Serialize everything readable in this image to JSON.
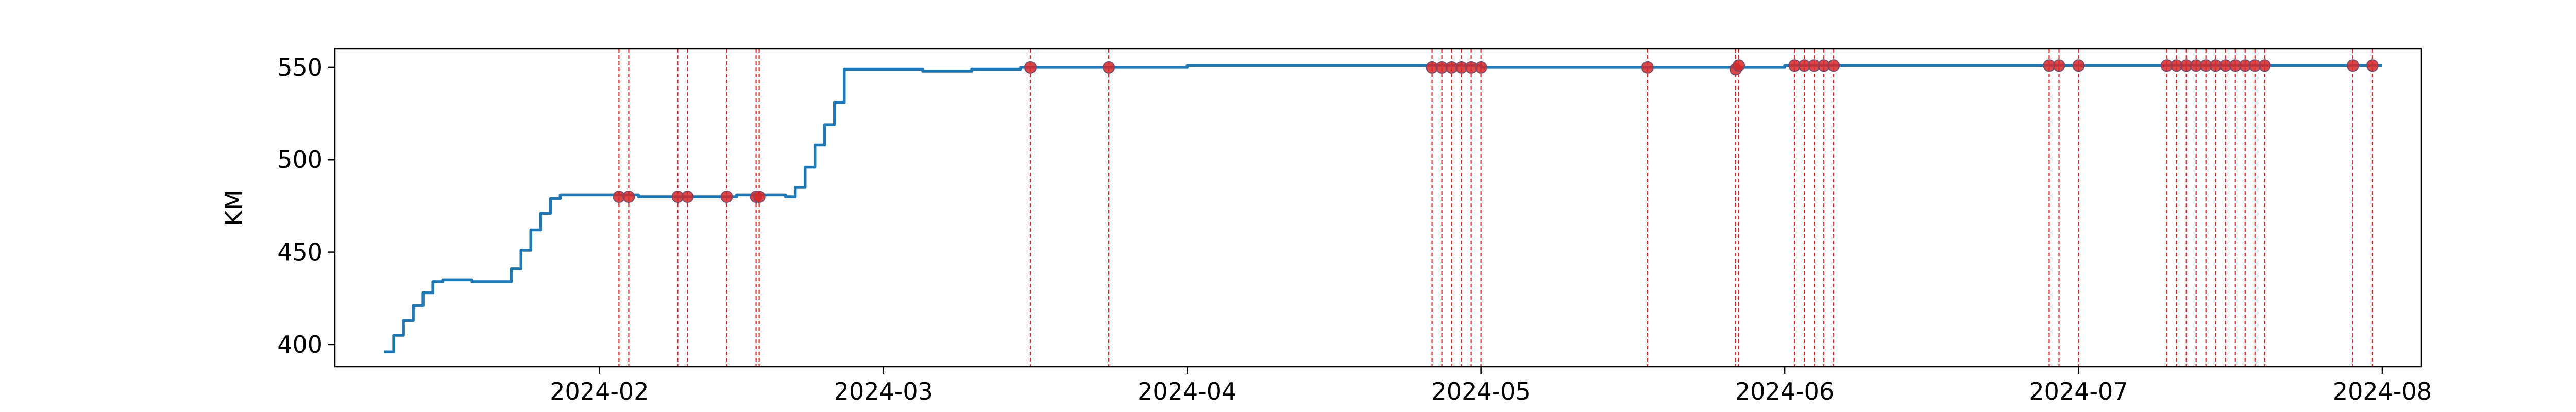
{
  "chart_data": {
    "type": "line",
    "title": "",
    "xlabel": "",
    "ylabel": "KM",
    "xlim": [
      "2024-01-05",
      "2024-08-05"
    ],
    "ylim": [
      388,
      560
    ],
    "x_ticks": [
      "2024-02-01",
      "2024-03-01",
      "2024-04-01",
      "2024-05-01",
      "2024-06-01",
      "2024-07-01",
      "2024-08-01"
    ],
    "x_tick_labels": [
      "2024-02",
      "2024-03",
      "2024-04",
      "2024-05",
      "2024-06",
      "2024-07",
      "2024-08"
    ],
    "y_ticks": [
      400,
      450,
      500,
      550
    ],
    "y_tick_labels": [
      "400",
      "450",
      "500",
      "550"
    ],
    "grid": false,
    "colors": {
      "line": "#1f77b4",
      "event": "#d62728",
      "axis": "#000000"
    },
    "series": [
      {
        "type": "line",
        "x": [
          "2024-01-10",
          "2024-01-11",
          "2024-01-12",
          "2024-01-13",
          "2024-01-14",
          "2024-01-15",
          "2024-01-16",
          "2024-01-19",
          "2024-01-22",
          "2024-01-23",
          "2024-01-24",
          "2024-01-25",
          "2024-01-26",
          "2024-01-27",
          "2024-01-28",
          "2024-02-01",
          "2024-02-05",
          "2024-02-10",
          "2024-02-15",
          "2024-02-20",
          "2024-02-21",
          "2024-02-22",
          "2024-02-23",
          "2024-02-24",
          "2024-02-25",
          "2024-02-26",
          "2024-03-05",
          "2024-03-10",
          "2024-03-15",
          "2024-04-01",
          "2024-05-01",
          "2024-06-01",
          "2024-07-01",
          "2024-08-01"
        ],
        "y": [
          396,
          405,
          413,
          421,
          428,
          434,
          435,
          434,
          434,
          441,
          451,
          462,
          471,
          479,
          481,
          481,
          480,
          480,
          481,
          480,
          485,
          496,
          508,
          519,
          531,
          549,
          548,
          549,
          550,
          551,
          550,
          551,
          551,
          551
        ]
      },
      {
        "type": "events",
        "name": "",
        "x": [
          "2024-02-03",
          "2024-02-04",
          "2024-02-09",
          "2024-02-10",
          "2024-02-14",
          "2024-02-17",
          "2024-02-17",
          "2024-03-16",
          "2024-03-24",
          "2024-04-26",
          "2024-04-27",
          "2024-04-28",
          "2024-04-29",
          "2024-04-30",
          "2024-05-01",
          "2024-05-18",
          "2024-05-27",
          "2024-05-27",
          "2024-06-02",
          "2024-06-03",
          "2024-06-04",
          "2024-06-05",
          "2024-06-06",
          "2024-06-28",
          "2024-06-29",
          "2024-07-01",
          "2024-07-10",
          "2024-07-11",
          "2024-07-12",
          "2024-07-13",
          "2024-07-14",
          "2024-07-15",
          "2024-07-16",
          "2024-07-17",
          "2024-07-18",
          "2024-07-19",
          "2024-07-20",
          "2024-07-29",
          "2024-07-31"
        ],
        "y": [
          480,
          480,
          480,
          480,
          480,
          480,
          480,
          550,
          550,
          550,
          550,
          550,
          550,
          550,
          550,
          550,
          549,
          551,
          551,
          551,
          551,
          551,
          551,
          551,
          551,
          551,
          551,
          551,
          551,
          551,
          551,
          551,
          551,
          551,
          551,
          551,
          551,
          551,
          551
        ]
      }
    ]
  }
}
